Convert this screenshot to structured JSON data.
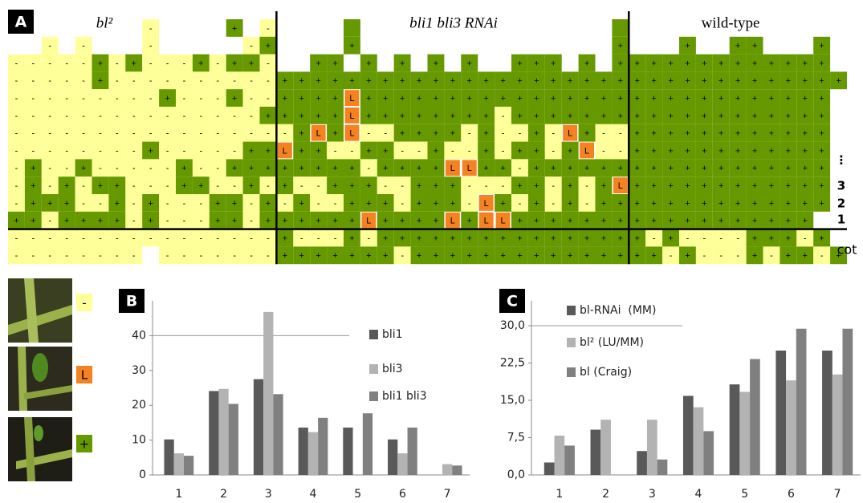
{
  "panel_a": {
    "label": "A",
    "titles": [
      "bl²",
      "bli1 bli3 RNAi",
      "wild-type"
    ],
    "row_labels": [
      "⋮",
      "3",
      "2",
      "1",
      "cot"
    ],
    "cell_colors": {
      "-": "#ffff99",
      "+": "#669900",
      "L": "#f58220",
      "y": "#ffff99",
      "g": "#669900"
    },
    "rows": [
      "........-....+.-....g...............g............",
      "..-.-...-.....-+....+...............+...+..++...+",
      "-----+-+---+-++-..++.+.+.+.+..+++.+.+++++++++++++",
      "-----+----------++++++++++++++++++++++++++++++++++",
      "---------+---+--++++L++++++++++++++++++++++++++++",
      "---------------+++++L++++++++-+++++++++++++++++++",
      "-----------------+L+L--++++-+--+-L+--++++++++++++",
      "--------+-----++L++--++--+--+-++-+L--++++++++++++",
      "-+--+-----+--++++++++-++++LL++-++++++++++++++++++",
      "-+-+-++---++--+-+--+++--+++---++-+-+L++++++++++++",
      "-+++--+-+---++-+-+--+++-+++-L+-+-+-++++++++++++++",
      "++-++++-+---++-++++++L++++L+LL++++++++++++++++++",
      "----------------+---+-++++++++++++++++-+----+++-+",
      "--------.-------+++++++-+++++++++++++++-+---+-++-+"
    ]
  },
  "symbol_key": [
    "-",
    "L",
    "+"
  ],
  "chart_data": [
    {
      "type": "bar",
      "panel_label": "B",
      "categories": [
        "1",
        "2",
        "3",
        "4",
        "5",
        "6",
        "7"
      ],
      "ylim": [
        0,
        50
      ],
      "yticks": [
        0,
        10,
        20,
        30,
        40
      ],
      "series": [
        {
          "name": "bli1",
          "color": "#595959",
          "values": [
            10.2,
            24.1,
            27.5,
            13.6,
            13.6,
            10.2,
            null
          ]
        },
        {
          "name": "bli3",
          "color": "#b3b3b3",
          "values": [
            6.2,
            24.7,
            46.8,
            12.3,
            null,
            6.2,
            3.1
          ]
        },
        {
          "name": "bli1 bli3",
          "color": "#808080",
          "values": [
            5.5,
            20.4,
            23.2,
            16.4,
            17.7,
            13.6,
            2.7
          ]
        }
      ]
    },
    {
      "type": "bar",
      "panel_label": "C",
      "categories": [
        "1",
        "2",
        "3",
        "4",
        "5",
        "6",
        "7"
      ],
      "ylim": [
        0,
        35
      ],
      "yticks": [
        {
          "value": 0,
          "label": "0,0"
        },
        {
          "value": 7.5,
          "label": "7,5"
        },
        {
          "value": 15,
          "label": "15,0"
        },
        {
          "value": 22.5,
          "label": "22,5"
        },
        {
          "value": 30,
          "label": "30,0"
        }
      ],
      "series": [
        {
          "name": "bl-RNAi  (MM)",
          "color": "#595959",
          "values": [
            2.5,
            9.1,
            4.8,
            15.9,
            18.2,
            25.0,
            25.0
          ]
        },
        {
          "name": "bl² (LU/MM)",
          "color": "#b3b3b3",
          "values": [
            7.9,
            11.1,
            11.1,
            13.6,
            16.7,
            19.0,
            20.2
          ]
        },
        {
          "name": "bl (Craig)",
          "color": "#808080",
          "values": [
            5.9,
            null,
            3.1,
            8.8,
            23.3,
            29.4,
            29.4
          ]
        }
      ]
    }
  ]
}
